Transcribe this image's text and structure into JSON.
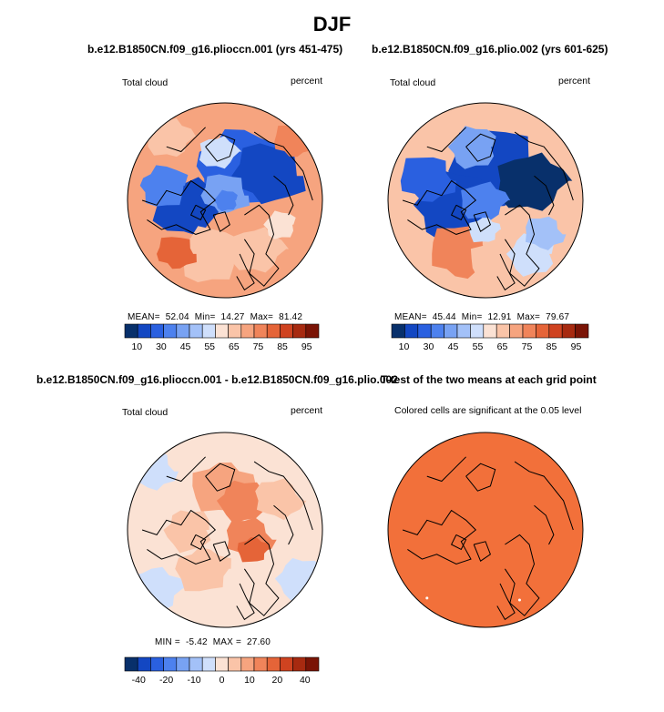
{
  "main_title": "DJF",
  "panels": {
    "p1": {
      "title": "b.e12.B1850CN.f09_g16.plioccn.001 (yrs 451-475)",
      "left_label": "Total cloud",
      "right_label": "percent",
      "stats": {
        "mean_label": "MEAN=",
        "mean": "52.04",
        "min_label": "Min=",
        "min": "14.27",
        "max_label": "Max=",
        "max": "81.42"
      }
    },
    "p2": {
      "title": "b.e12.B1850CN.f09_g16.plio.002 (yrs 601-625)",
      "left_label": "Total cloud",
      "right_label": "percent",
      "stats": {
        "mean_label": "MEAN=",
        "mean": "45.44",
        "min_label": "Min=",
        "min": "12.91",
        "max_label": "Max=",
        "max": "79.67"
      }
    },
    "p3": {
      "title": "b.e12.B1850CN.f09_g16.plioccn.001 - b.e12.B1850CN.f09_g16.plio.002",
      "left_label": "Total cloud",
      "right_label": "percent",
      "stats": {
        "min_label": "MIN =",
        "min": "-5.42",
        "max_label": "MAX =",
        "max": "27.60"
      }
    },
    "p4": {
      "title": "T-test of the two means at each grid point",
      "subtitle": "Colored cells are significant at the 0.05 level"
    }
  },
  "chart_data": [
    {
      "type": "heatmap",
      "projection": "north-polar-stereographic",
      "title": "b.e12.B1850CN.f09_g16.plioccn.001 (yrs 451-475)",
      "variable": "Total cloud",
      "units": "percent",
      "mean": 52.04,
      "min": 14.27,
      "max": 81.42,
      "colorbar_levels": [
        10,
        20,
        30,
        40,
        45,
        50,
        55,
        60,
        65,
        70,
        75,
        80,
        85,
        90,
        95
      ],
      "colorbar_ticks": [
        "10",
        "30",
        "45",
        "55",
        "65",
        "75",
        "85",
        "95"
      ]
    },
    {
      "type": "heatmap",
      "projection": "north-polar-stereographic",
      "title": "b.e12.B1850CN.f09_g16.plio.002 (yrs 601-625)",
      "variable": "Total cloud",
      "units": "percent",
      "mean": 45.44,
      "min": 12.91,
      "max": 79.67,
      "colorbar_levels": [
        10,
        20,
        30,
        40,
        45,
        50,
        55,
        60,
        65,
        70,
        75,
        80,
        85,
        90,
        95
      ],
      "colorbar_ticks": [
        "10",
        "30",
        "45",
        "55",
        "65",
        "75",
        "85",
        "95"
      ]
    },
    {
      "type": "heatmap",
      "projection": "north-polar-stereographic",
      "title": "b.e12.B1850CN.f09_g16.plioccn.001 - b.e12.B1850CN.f09_g16.plio.002",
      "variable": "Total cloud",
      "units": "percent",
      "min": -5.42,
      "max": 27.6,
      "colorbar_levels": [
        -50,
        -40,
        -30,
        -20,
        -15,
        -10,
        -5,
        0,
        5,
        10,
        15,
        20,
        30,
        40,
        50
      ],
      "colorbar_ticks": [
        "-40",
        "-20",
        "-10",
        "0",
        "10",
        "20",
        "40"
      ]
    },
    {
      "type": "heatmap",
      "projection": "north-polar-stereographic",
      "title": "T-test of the two means at each grid point",
      "annotation": "Colored cells are significant at the 0.05 level"
    }
  ],
  "colors": {
    "palette": [
      "#08306b",
      "#1347c2",
      "#2a60e0",
      "#4d81ee",
      "#78a2f3",
      "#a3c1f8",
      "#cfdffb",
      "#fbe2d4",
      "#fac4a8",
      "#f6a47f",
      "#f0845a",
      "#e56438",
      "#cf4320",
      "#a72a10",
      "#7a1406"
    ],
    "significant": "#f2703a",
    "coast": "#000000"
  }
}
